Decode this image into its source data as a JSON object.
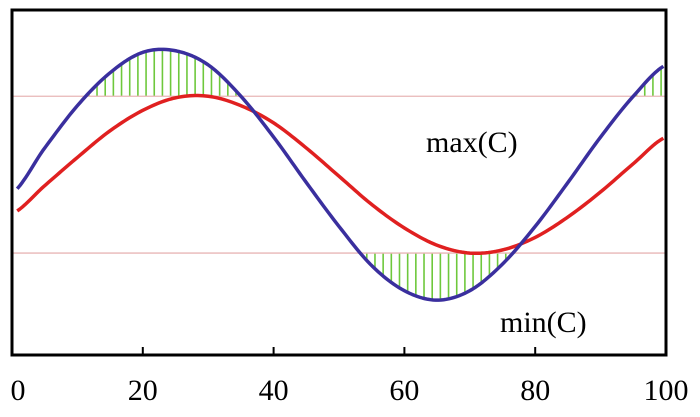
{
  "chart_data": {
    "type": "line",
    "title": "",
    "xlabel": "",
    "ylabel": "",
    "xlim": [
      0,
      100
    ],
    "ylim": [
      -1.15,
      1.05
    ],
    "x_ticks": [
      "0",
      "20",
      "40",
      "60",
      "80",
      "100"
    ],
    "grid": false,
    "legend": "none",
    "reference_lines": [
      {
        "value": 0.5,
        "label": "max(C)"
      },
      {
        "value": -0.5,
        "label": "min(C)"
      }
    ],
    "series": [
      {
        "color": "#3a2f9e",
        "function": "0.8*sin(2*pi*(x-2)/85)",
        "x": [
          0,
          5,
          10,
          15,
          20,
          25,
          30,
          35,
          40,
          45,
          50,
          55,
          60,
          65,
          70,
          75,
          80,
          85,
          90,
          95,
          100
        ],
        "values": [
          -0.12,
          0.17,
          0.44,
          0.65,
          0.78,
          0.79,
          0.7,
          0.5,
          0.24,
          -0.05,
          -0.33,
          -0.58,
          -0.74,
          -0.8,
          -0.74,
          -0.57,
          -0.33,
          -0.05,
          0.24,
          0.5,
          0.7
        ]
      },
      {
        "color": "#e02020",
        "function": "0.5*sin(2*pi*(x-7)/85)",
        "x": [
          0,
          5,
          10,
          15,
          20,
          25,
          30,
          35,
          40,
          45,
          50,
          55,
          60,
          65,
          70,
          75,
          80,
          85,
          90,
          95,
          100
        ],
        "values": [
          -0.25,
          -0.07,
          0.11,
          0.28,
          0.41,
          0.49,
          0.5,
          0.44,
          0.33,
          0.17,
          -0.01,
          -0.19,
          -0.34,
          -0.45,
          -0.5,
          -0.48,
          -0.4,
          -0.27,
          -0.11,
          0.07,
          0.24
        ]
      }
    ],
    "shaded_regions": [
      {
        "fill_color": "#6ec83c",
        "between": "blue series and max(C) where blue > max(C)"
      },
      {
        "fill_color": "#6ec83c",
        "between": "blue series and min(C) where blue < min(C)"
      }
    ],
    "annotations": [
      "max(C)",
      "min(C)"
    ],
    "line_colors": {
      "reference": "#e8b6b6",
      "frame": "#000000"
    }
  }
}
